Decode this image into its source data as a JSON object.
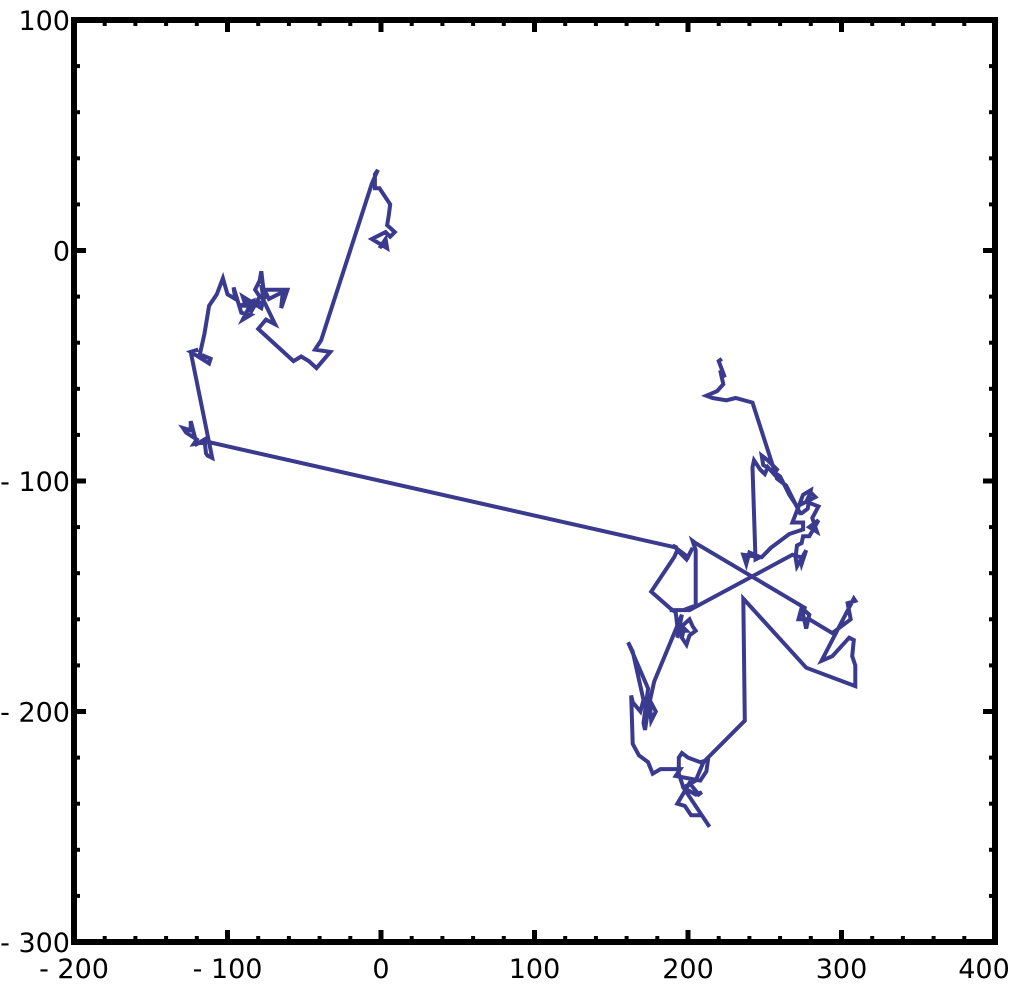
{
  "chart_data": {
    "type": "line",
    "title": "",
    "xlabel": "",
    "ylabel": "",
    "xlim": [
      -200,
      400
    ],
    "ylim": [
      -300,
      100
    ],
    "grid": false,
    "x_ticks": [
      -200,
      -100,
      0,
      100,
      200,
      300,
      400
    ],
    "y_ticks": [
      100,
      0,
      -100,
      -200,
      -300
    ],
    "x_tick_labels": [
      "- 200",
      "- 100",
      "0",
      "100",
      "200",
      "300",
      "400"
    ],
    "y_tick_labels": [
      "100",
      "0",
      "- 100",
      "- 200",
      "- 300"
    ],
    "line_color": "#3a3a8e",
    "series": [
      {
        "points": [
          [
            -1,
            1
          ],
          [
            3,
            5
          ],
          [
            4,
            1
          ],
          [
            -6,
            5
          ],
          [
            3,
            8
          ],
          [
            6,
            6
          ],
          [
            9,
            8
          ],
          [
            4,
            11
          ],
          [
            5,
            15
          ],
          [
            6,
            20
          ],
          [
            4,
            22
          ],
          [
            -1,
            27
          ],
          [
            -4,
            27
          ],
          [
            -4,
            33
          ],
          [
            -2,
            35
          ],
          [
            -6,
            29
          ],
          [
            -39,
            -39
          ],
          [
            -43,
            -43
          ],
          [
            -33,
            -44
          ],
          [
            -42,
            -51
          ],
          [
            -47,
            -48
          ],
          [
            -52,
            -46
          ],
          [
            -57,
            -48
          ],
          [
            -80,
            -34
          ],
          [
            -75,
            -30
          ],
          [
            -69,
            -32
          ],
          [
            -77,
            -21
          ],
          [
            -75,
            -20
          ],
          [
            -76,
            -17
          ],
          [
            -73,
            -21
          ],
          [
            -64,
            -18
          ],
          [
            -65,
            -25
          ],
          [
            -61,
            -17
          ],
          [
            -76,
            -17
          ],
          [
            -78,
            -15
          ],
          [
            -76,
            -23
          ],
          [
            -82,
            -22
          ],
          [
            -85,
            -27
          ],
          [
            -79,
            -20
          ],
          [
            -82,
            -17
          ],
          [
            -79,
            -13
          ],
          [
            -78,
            -9
          ],
          [
            -76,
            -20
          ],
          [
            -78,
            -25
          ],
          [
            -90,
            -20
          ],
          [
            -88,
            -24
          ],
          [
            -92,
            -24
          ],
          [
            -84,
            -22
          ],
          [
            -90,
            -30
          ],
          [
            -85,
            -28
          ],
          [
            -91,
            -27
          ],
          [
            -96,
            -16
          ],
          [
            -95,
            -21
          ],
          [
            -100,
            -19
          ],
          [
            -103,
            -12
          ],
          [
            -107,
            -19
          ],
          [
            -112,
            -24
          ],
          [
            -115,
            -36
          ],
          [
            -118,
            -45
          ],
          [
            -111,
            -47
          ],
          [
            -112,
            -49
          ],
          [
            -124,
            -44
          ],
          [
            -119,
            -43
          ],
          [
            -124,
            -44
          ],
          [
            -110,
            -90
          ],
          [
            -113,
            -89
          ],
          [
            -114,
            -88
          ],
          [
            -115,
            -82
          ],
          [
            -120,
            -84
          ],
          [
            -124,
            -74
          ],
          [
            -124,
            -78
          ],
          [
            -129,
            -77
          ],
          [
            -127,
            -79
          ],
          [
            -120,
            -82
          ],
          [
            -122,
            -84
          ],
          [
            -113,
            -83
          ],
          [
            193,
            -129
          ],
          [
            190,
            -128
          ],
          [
            200,
            -133
          ],
          [
            203,
            -129
          ],
          [
            199,
            -134
          ],
          [
            193,
            -130
          ],
          [
            191,
            -133
          ],
          [
            176,
            -148
          ],
          [
            188,
            -155
          ],
          [
            192,
            -157
          ],
          [
            193,
            -163
          ],
          [
            197,
            -165
          ],
          [
            196,
            -168
          ],
          [
            199,
            -171
          ],
          [
            201,
            -167
          ],
          [
            205,
            -165
          ],
          [
            203,
            -163
          ],
          [
            201,
            -160
          ],
          [
            196,
            -163
          ],
          [
            199,
            -165
          ],
          [
            195,
            -165
          ],
          [
            193,
            -168
          ],
          [
            196,
            -158
          ],
          [
            178,
            -187
          ],
          [
            175,
            -196
          ],
          [
            176,
            -204
          ],
          [
            179,
            -200
          ],
          [
            175,
            -195
          ],
          [
            172,
            -208
          ],
          [
            171,
            -205
          ],
          [
            174,
            -190
          ],
          [
            161,
            -170
          ],
          [
            164,
            -174
          ],
          [
            171,
            -195
          ],
          [
            169,
            -200
          ],
          [
            164,
            -196
          ],
          [
            163,
            -193
          ],
          [
            164,
            -214
          ],
          [
            168,
            -219
          ],
          [
            174,
            -222
          ],
          [
            177,
            -227
          ],
          [
            182,
            -225
          ],
          [
            195,
            -225
          ],
          [
            192,
            -228
          ],
          [
            208,
            -230
          ],
          [
            212,
            -226
          ],
          [
            213,
            -221
          ],
          [
            208,
            -222
          ],
          [
            200,
            -220
          ],
          [
            196,
            -218
          ],
          [
            194,
            -220
          ],
          [
            194,
            -227
          ],
          [
            197,
            -233
          ],
          [
            205,
            -236
          ],
          [
            209,
            -235
          ],
          [
            207,
            -236
          ],
          [
            201,
            -231
          ],
          [
            193,
            -240
          ],
          [
            198,
            -241
          ],
          [
            202,
            -245
          ],
          [
            209,
            -245
          ],
          [
            212,
            -248
          ],
          [
            214,
            -250
          ],
          [
            197,
            -233
          ],
          [
            205,
            -230
          ],
          [
            210,
            -222
          ],
          [
            237,
            -204
          ],
          [
            236,
            -151
          ],
          [
            277,
            -181
          ],
          [
            309,
            -189
          ],
          [
            309,
            -180
          ],
          [
            307,
            -176
          ],
          [
            308,
            -169
          ],
          [
            305,
            -168
          ],
          [
            294,
            -176
          ],
          [
            287,
            -178
          ],
          [
            308,
            -151
          ],
          [
            309,
            -152
          ],
          [
            304,
            -153
          ],
          [
            306,
            -160
          ],
          [
            294,
            -166
          ],
          [
            279,
            -160
          ],
          [
            272,
            -160
          ],
          [
            274,
            -155
          ],
          [
            279,
            -158
          ],
          [
            277,
            -164
          ],
          [
            275,
            -158
          ],
          [
            276,
            -155
          ],
          [
            205,
            -127
          ],
          [
            203,
            -126
          ],
          [
            205,
            -130
          ],
          [
            205,
            -154
          ],
          [
            197,
            -156
          ],
          [
            188,
            -156
          ],
          [
            201,
            -156
          ],
          [
            268,
            -132
          ],
          [
            273,
            -133
          ],
          [
            274,
            -136
          ],
          [
            277,
            -130
          ],
          [
            271,
            -137
          ],
          [
            270,
            -133
          ],
          [
            271,
            -128
          ],
          [
            274,
            -127
          ],
          [
            275,
            -124
          ],
          [
            279,
            -124
          ],
          [
            285,
            -117
          ],
          [
            279,
            -120
          ],
          [
            284,
            -122
          ],
          [
            281,
            -116
          ],
          [
            285,
            -111
          ],
          [
            277,
            -109
          ],
          [
            280,
            -105
          ],
          [
            283,
            -107
          ],
          [
            271,
            -111
          ],
          [
            266,
            -106
          ],
          [
            260,
            -98
          ],
          [
            258,
            -97
          ],
          [
            249,
            -93
          ],
          [
            248,
            -89
          ],
          [
            252,
            -91
          ],
          [
            258,
            -95
          ],
          [
            256,
            -97
          ],
          [
            252,
            -94
          ],
          [
            250,
            -97
          ],
          [
            247,
            -95
          ],
          [
            243,
            -91
          ],
          [
            242,
            -94
          ],
          [
            244,
            -134
          ],
          [
            247,
            -133
          ],
          [
            240,
            -131
          ],
          [
            238,
            -136
          ],
          [
            236,
            -132
          ],
          [
            248,
            -133
          ],
          [
            254,
            -129
          ],
          [
            266,
            -123
          ],
          [
            275,
            -121
          ],
          [
            275,
            -118
          ],
          [
            268,
            -118
          ],
          [
            275,
            -106
          ],
          [
            280,
            -104
          ],
          [
            278,
            -112
          ],
          [
            274,
            -114
          ],
          [
            273,
            -114
          ],
          [
            264,
            -102
          ],
          [
            258,
            -99
          ],
          [
            242,
            -66
          ],
          [
            231,
            -64
          ],
          [
            225,
            -65
          ],
          [
            216,
            -64
          ],
          [
            212,
            -63
          ],
          [
            219,
            -61
          ],
          [
            223,
            -58
          ],
          [
            221,
            -52
          ],
          [
            224,
            -55
          ],
          [
            220,
            -48
          ],
          [
            222,
            -47
          ]
        ]
      }
    ]
  }
}
